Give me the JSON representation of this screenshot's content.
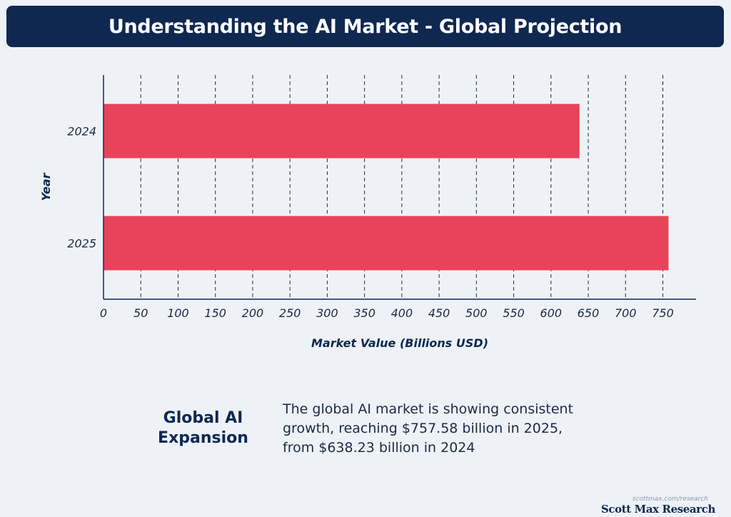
{
  "title": "Understanding the AI Market - Global Projection",
  "chart_data": {
    "type": "bar",
    "orientation": "horizontal",
    "categories": [
      "2024",
      "2025"
    ],
    "values": [
      638.23,
      757.58
    ],
    "xlabel": "Market Value (Billions USD)",
    "ylabel": "Year",
    "xlim": [
      0,
      750
    ],
    "xticks": [
      0,
      50,
      100,
      150,
      200,
      250,
      300,
      350,
      400,
      450,
      500,
      550,
      600,
      650,
      700,
      750
    ],
    "grid": "vertical dashed",
    "bar_color": "#e8435a"
  },
  "summary": {
    "heading": "Global AI Expansion",
    "text": "The global AI market is showing consistent growth, reaching $757.58 billion in 2025, from $638.23 billion in 2024"
  },
  "credit": {
    "url": "scottmax.com/research",
    "brand": "Scott Max Research"
  },
  "colors": {
    "banner": "#0f2850",
    "background": "#eef2f7",
    "bar": "#e8435a"
  }
}
